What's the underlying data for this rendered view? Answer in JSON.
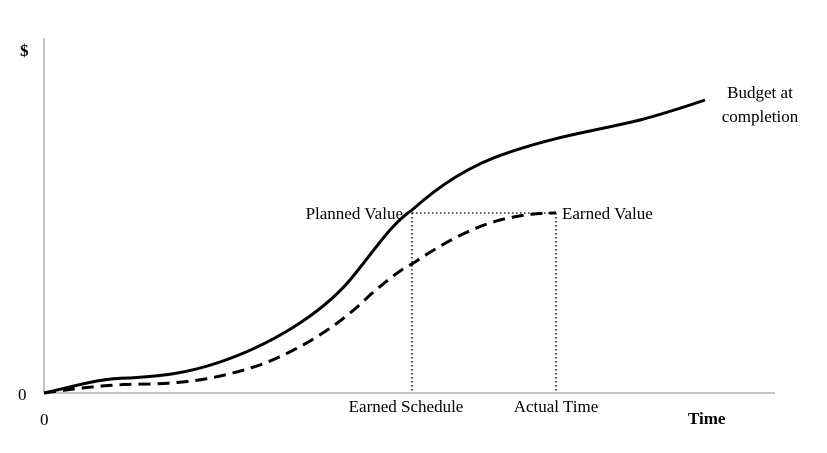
{
  "axes": {
    "y_label": "$",
    "y_origin": "0",
    "x_origin": "0",
    "x_label": "Time"
  },
  "labels": {
    "budget_at_completion": [
      "Budget at",
      "completion"
    ],
    "planned_value": "Planned Value",
    "earned_value": "Earned Value",
    "earned_schedule": "Earned Schedule",
    "actual_time": "Actual Time"
  }
}
